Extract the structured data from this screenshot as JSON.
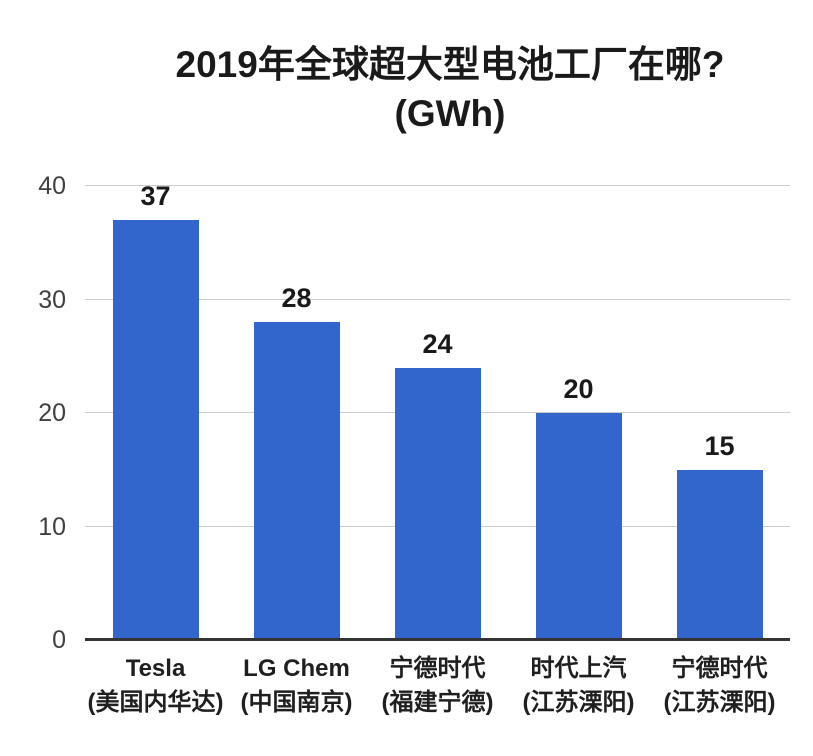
{
  "title": {
    "line1": "2019年全球超大型电池工厂在哪?",
    "line2": "(GWh)"
  },
  "chart_data": {
    "type": "bar",
    "title": "2019年全球超大型电池工厂在哪?",
    "unit": "GWh",
    "categories": [
      "Tesla (美国内华达)",
      "LG Chem (中国南京)",
      "宁德时代 (福建宁德)",
      "时代上汽 (江苏溧阳)",
      "宁德时代 (江苏溧阳)"
    ],
    "values": [
      37,
      28,
      24,
      20,
      15
    ],
    "bars": [
      {
        "label": "Tesla",
        "sublabel": "(美国内华达)",
        "value": 37
      },
      {
        "label": "LG Chem",
        "sublabel": "(中国南京)",
        "value": 28
      },
      {
        "label": "宁德时代",
        "sublabel": "(福建宁德)",
        "value": 24
      },
      {
        "label": "时代上汽",
        "sublabel": "(江苏溧阳)",
        "value": 20
      },
      {
        "label": "宁德时代",
        "sublabel": "(江苏溧阳)",
        "value": 15
      }
    ],
    "ylim": [
      0,
      40
    ],
    "yticks": [
      0,
      10,
      20,
      30,
      40
    ],
    "grid": true,
    "legend": "none",
    "xlabel": "",
    "ylabel": "",
    "bar_color": "#3366CC",
    "grid_color": "#CCCCCC",
    "axis_color": "#333333",
    "value_label_color": "#1A1A1A",
    "tick_label_color": "#404040"
  }
}
